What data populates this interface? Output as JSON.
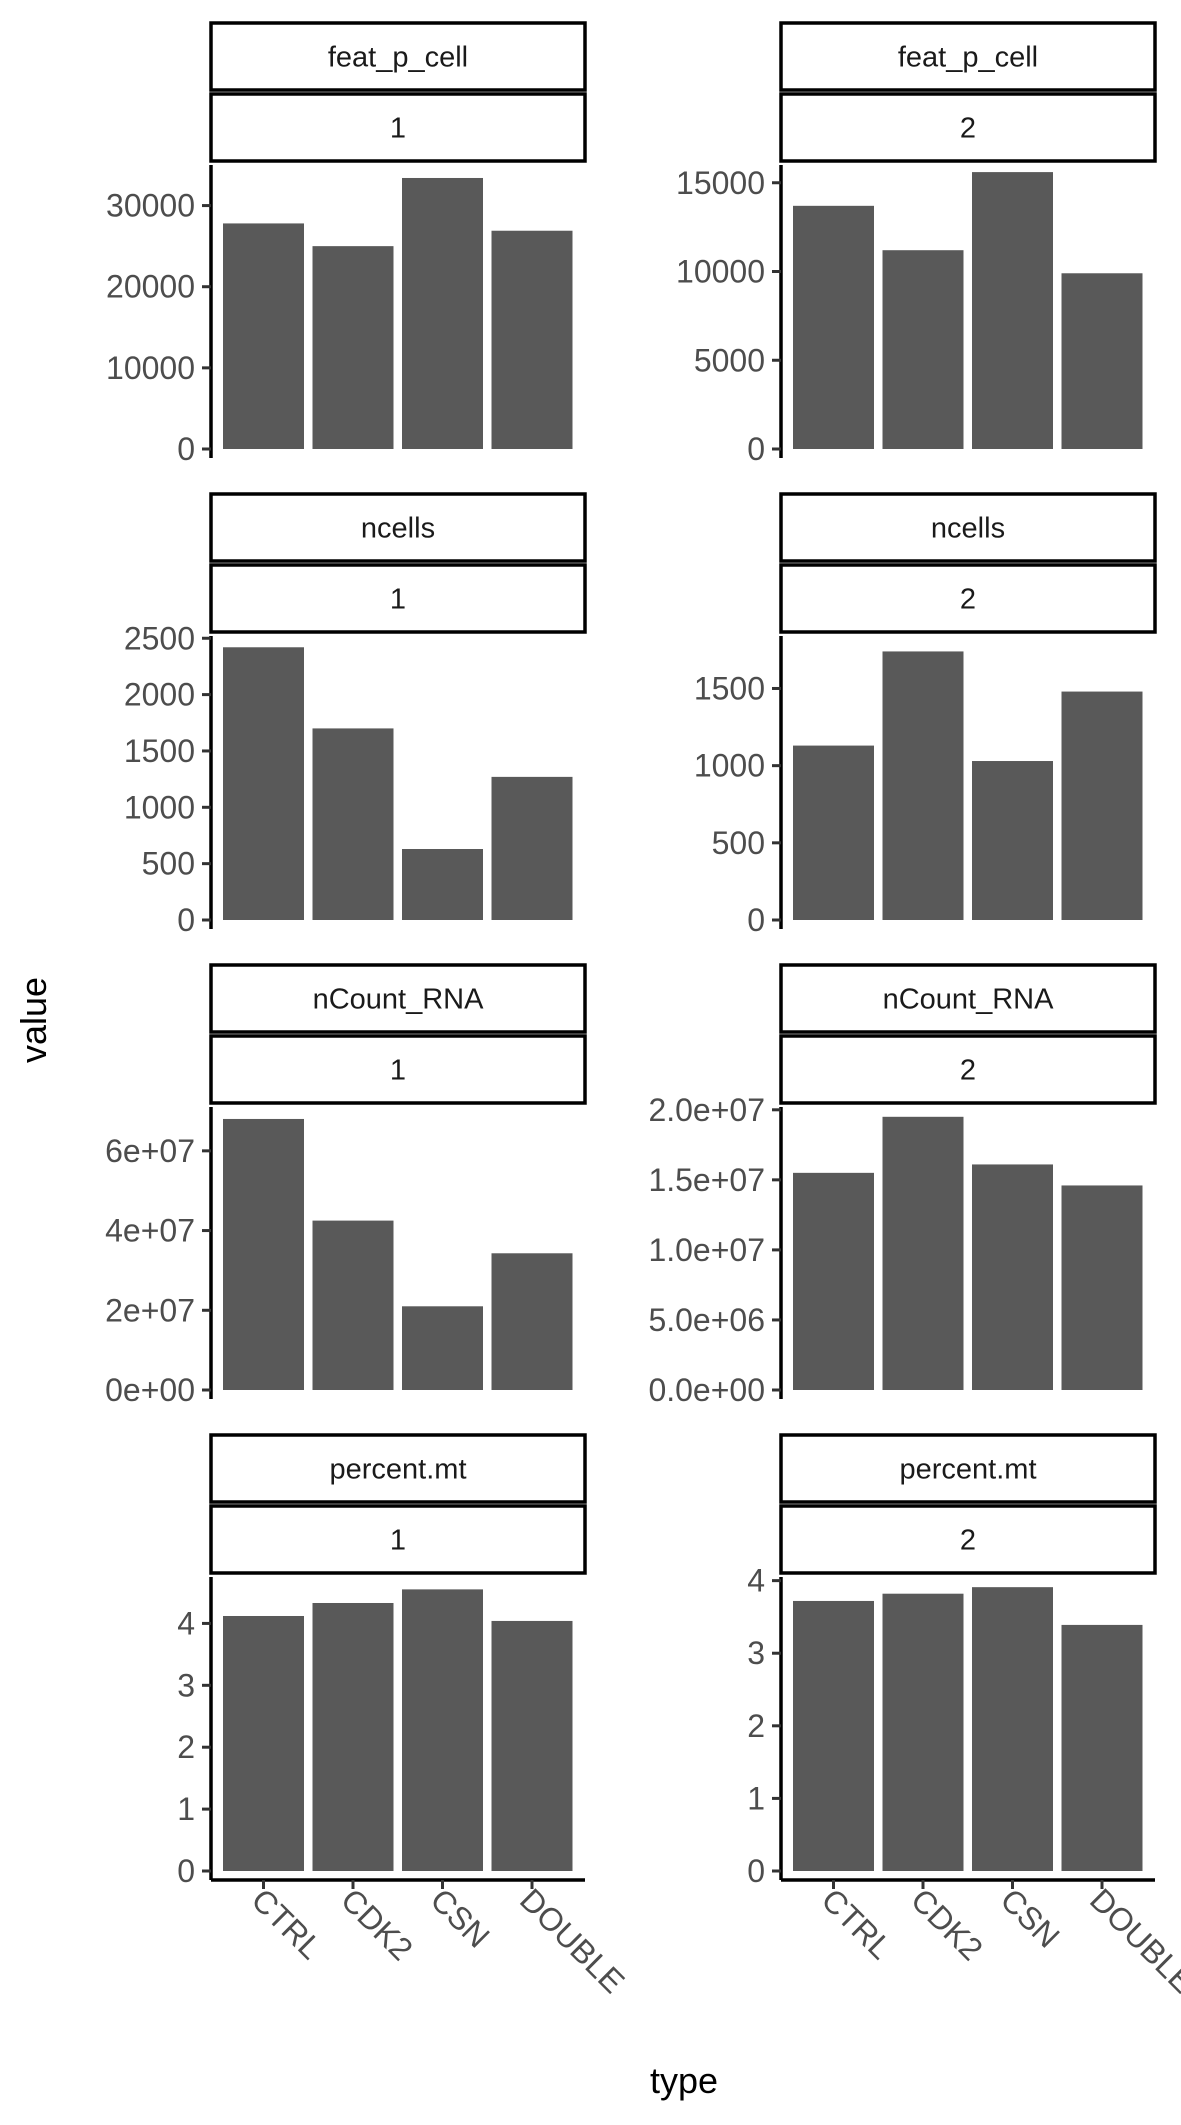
{
  "chart_data": {
    "type": "bar",
    "xlabel": "type",
    "ylabel": "value",
    "categories": [
      "CTRL",
      "CDK2",
      "CSN",
      "DOUBLE"
    ],
    "bar_color": "#595959",
    "grid": false,
    "facets": [
      {
        "variable": "feat_p_cell",
        "group": "1",
        "values": [
          27800,
          25000,
          33400,
          26900
        ],
        "ylim": [
          0,
          35000
        ],
        "yticks": [
          0,
          10000,
          20000,
          30000
        ],
        "ytick_labels": [
          "0",
          "10000",
          "20000",
          "30000"
        ]
      },
      {
        "variable": "feat_p_cell",
        "group": "2",
        "values": [
          13700,
          11200,
          15600,
          9900
        ],
        "ylim": [
          0,
          16000
        ],
        "yticks": [
          0,
          5000,
          10000,
          15000
        ],
        "ytick_labels": [
          "0",
          "5000",
          "10000",
          "15000"
        ]
      },
      {
        "variable": "ncells",
        "group": "1",
        "values": [
          2420,
          1700,
          630,
          1270
        ],
        "ylim": [
          0,
          2520
        ],
        "yticks": [
          0,
          500,
          1000,
          1500,
          2000,
          2500
        ],
        "ytick_labels": [
          "0",
          "500",
          "1000",
          "1500",
          "2000",
          "2500"
        ]
      },
      {
        "variable": "ncells",
        "group": "2",
        "values": [
          1130,
          1740,
          1030,
          1480
        ],
        "ylim": [
          0,
          1840
        ],
        "yticks": [
          0,
          500,
          1000,
          1500
        ],
        "ytick_labels": [
          "0",
          "500",
          "1000",
          "1500"
        ]
      },
      {
        "variable": "nCount_RNA",
        "group": "1",
        "values": [
          68000000,
          42500000,
          21000000,
          34300000
        ],
        "ylim": [
          0,
          71000000
        ],
        "yticks": [
          0,
          20000000,
          40000000,
          60000000
        ],
        "ytick_labels": [
          "0e+00",
          "2e+07",
          "4e+07",
          "6e+07"
        ]
      },
      {
        "variable": "nCount_RNA",
        "group": "2",
        "values": [
          15500000,
          19500000,
          16100000,
          14600000
        ],
        "ylim": [
          0,
          20200000
        ],
        "yticks": [
          0,
          5000000,
          10000000,
          15000000,
          20000000
        ],
        "ytick_labels": [
          "0.0e+00",
          "5.0e+06",
          "1.0e+07",
          "1.5e+07",
          "2.0e+07"
        ]
      },
      {
        "variable": "percent.mt",
        "group": "1",
        "values": [
          4.12,
          4.33,
          4.55,
          4.04
        ],
        "ylim": [
          0,
          4.75
        ],
        "yticks": [
          0,
          1,
          2,
          3,
          4
        ],
        "ytick_labels": [
          "0",
          "1",
          "2",
          "3",
          "4"
        ]
      },
      {
        "variable": "percent.mt",
        "group": "2",
        "values": [
          3.72,
          3.82,
          3.91,
          3.39
        ],
        "ylim": [
          0,
          4.05
        ],
        "yticks": [
          0,
          1,
          2,
          3,
          4
        ],
        "ytick_labels": [
          "0",
          "1",
          "2",
          "3",
          "4"
        ]
      }
    ]
  }
}
